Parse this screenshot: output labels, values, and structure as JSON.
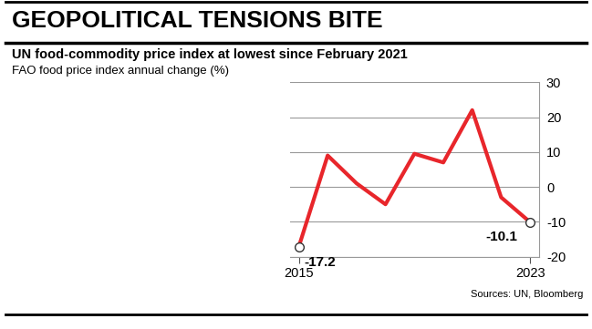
{
  "chart_data": {
    "type": "line",
    "title": "GEOPOLITICAL TENSIONS BITE",
    "subtitle": "UN food-commodity price index at lowest since February 2021",
    "y_label": "FAO food price index annual change (%)",
    "source": "Sources: UN, Bloomberg",
    "x": [
      2015,
      2016,
      2017,
      2018,
      2019,
      2020,
      2021,
      2022,
      2023
    ],
    "values": [
      -17.2,
      9,
      1,
      -5,
      9.5,
      7,
      22,
      -3,
      -10.1
    ],
    "color": "#e8262b",
    "marker": "none",
    "xlim": [
      2014.7,
      2023.3
    ],
    "xticks": [
      2015,
      2023
    ],
    "ylim": [
      -20,
      30
    ],
    "yticks": [
      -20,
      -10,
      0,
      10,
      20,
      30
    ],
    "grid": true,
    "annotations": [
      {
        "x": 2015,
        "y": -17.2,
        "text": "-17.2"
      },
      {
        "x": 2023,
        "y": -10.1,
        "text": "-10.1"
      }
    ]
  }
}
